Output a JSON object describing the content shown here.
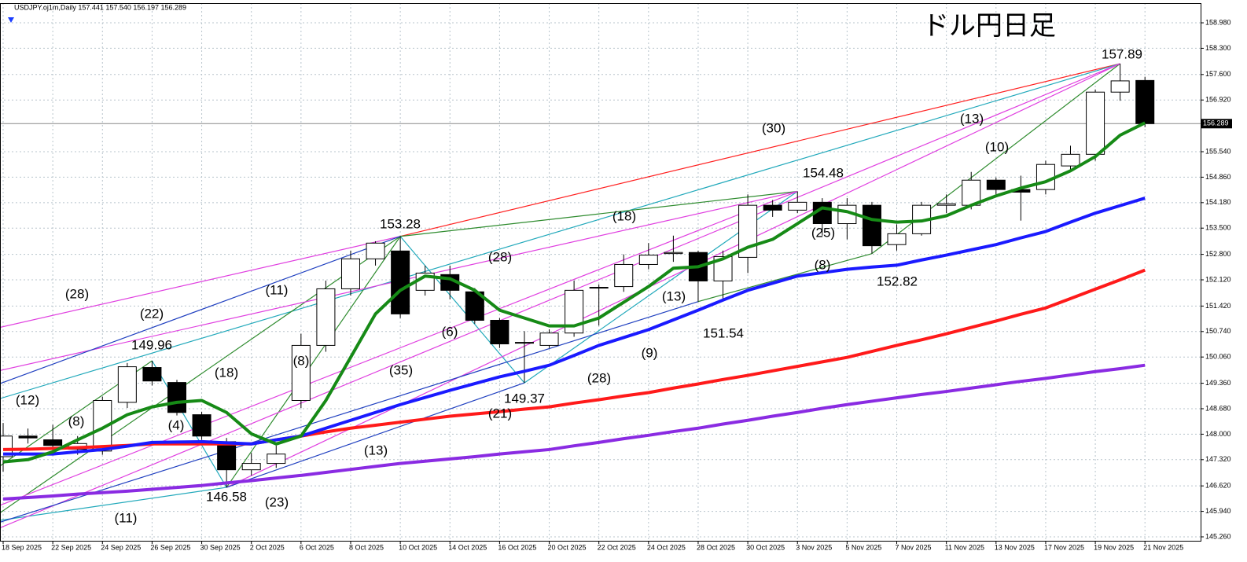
{
  "chart_data": {
    "type": "candlestick",
    "header": "USDJPY.oj1m,Daily  157.441 157.540 156.197 156.289",
    "title": "ドル円日足",
    "categories": [
      "18 Sep 2025",
      null,
      "22 Sep 2025",
      null,
      "24 Sep 2025",
      null,
      "26 Sep 2025",
      null,
      "30 Sep 2025",
      null,
      "2 Oct 2025",
      null,
      "6 Oct 2025",
      null,
      "8 Oct 2025",
      null,
      "10 Oct 2025",
      null,
      "14 Oct 2025",
      null,
      "16 Oct 2025",
      null,
      "20 Oct 2025",
      null,
      "22 Oct 2025",
      null,
      "24 Oct 2025",
      null,
      "28 Oct 2025",
      null,
      "30 Oct 2025",
      null,
      "3 Nov 2025",
      null,
      "5 Nov 2025",
      null,
      "7 Nov 2025",
      null,
      "11 Nov 2025",
      null,
      "13 Nov 2025",
      null,
      "17 Nov 2025",
      null,
      "19 Nov 2025",
      null,
      "21 Nov 2025"
    ],
    "open": [
      147.4,
      147.95,
      147.85,
      147.6,
      147.55,
      148.85,
      149.78,
      149.38,
      148.52,
      147.8,
      147.05,
      147.22,
      148.9,
      150.37,
      151.88,
      152.68,
      152.89,
      151.84,
      152.26,
      151.8,
      151.04,
      150.45,
      150.37,
      150.7,
      151.9,
      151.94,
      152.53,
      152.82,
      152.85,
      152.09,
      152.72,
      154.11,
      153.98,
      154.19,
      153.62,
      154.11,
      153.06,
      153.35,
      154.11,
      154.11,
      154.78,
      154.53,
      154.53,
      155.16,
      155.47,
      157.13,
      157.441
    ],
    "high": [
      148.3,
      148.15,
      148.25,
      147.95,
      149.0,
      149.9,
      149.96,
      149.45,
      148.6,
      147.9,
      147.5,
      147.7,
      150.68,
      152.1,
      152.9,
      153.15,
      153.28,
      152.5,
      152.5,
      151.9,
      151.1,
      150.75,
      150.8,
      152.1,
      152.0,
      152.8,
      153.1,
      153.3,
      152.9,
      152.9,
      154.4,
      154.25,
      154.48,
      154.3,
      154.3,
      154.2,
      153.6,
      154.2,
      154.4,
      155.0,
      154.85,
      154.9,
      155.3,
      155.7,
      157.2,
      157.89,
      157.54
    ],
    "low": [
      147.0,
      147.75,
      147.55,
      147.45,
      147.45,
      148.7,
      149.3,
      148.5,
      147.85,
      146.58,
      146.9,
      147.1,
      148.7,
      150.2,
      151.7,
      152.5,
      151.1,
      151.7,
      151.6,
      150.95,
      150.3,
      149.37,
      150.3,
      150.6,
      150.9,
      151.8,
      152.4,
      152.6,
      151.54,
      151.6,
      152.3,
      153.8,
      153.9,
      153.3,
      153.2,
      152.82,
      152.9,
      153.3,
      153.9,
      154.0,
      154.4,
      153.7,
      154.4,
      155.0,
      155.3,
      156.9,
      156.197
    ],
    "close": [
      147.95,
      147.9,
      147.7,
      147.75,
      148.9,
      149.8,
      149.42,
      148.58,
      147.95,
      147.05,
      147.22,
      147.47,
      150.37,
      151.88,
      152.68,
      153.1,
      151.21,
      152.3,
      151.84,
      151.04,
      150.41,
      150.43,
      150.7,
      151.84,
      151.92,
      152.53,
      152.78,
      152.85,
      152.09,
      152.74,
      154.11,
      153.98,
      154.19,
      153.62,
      154.11,
      153.03,
      153.35,
      154.11,
      154.15,
      154.78,
      154.53,
      154.46,
      155.2,
      155.47,
      157.13,
      157.43,
      156.289
    ],
    "lines": [
      {
        "color": "#8a2be2",
        "values": [
          146.27,
          146.31,
          146.35,
          146.4,
          146.44,
          146.48,
          146.53,
          146.58,
          146.63,
          146.7,
          146.76,
          146.83,
          146.9,
          146.98,
          147.06,
          147.14,
          147.22,
          147.28,
          147.34,
          147.4,
          147.47,
          147.53,
          147.59,
          147.69,
          147.78,
          147.88,
          147.97,
          148.07,
          148.16,
          148.27,
          148.37,
          148.48,
          148.58,
          148.69,
          148.79,
          148.88,
          148.97,
          149.06,
          149.14,
          149.23,
          149.32,
          149.41,
          149.49,
          149.58,
          149.67,
          149.75,
          149.84
        ]
      },
      {
        "color": "#ff1a1a",
        "values": [
          147.59,
          147.6,
          147.62,
          147.64,
          147.67,
          147.7,
          147.74,
          147.74,
          147.74,
          147.74,
          147.74,
          147.85,
          147.95,
          148.06,
          148.16,
          148.24,
          148.32,
          148.4,
          148.48,
          148.54,
          148.6,
          148.67,
          148.73,
          148.83,
          148.92,
          149.02,
          149.11,
          149.23,
          149.34,
          149.46,
          149.57,
          149.69,
          149.81,
          149.93,
          150.05,
          150.21,
          150.37,
          150.52,
          150.68,
          150.85,
          151.02,
          151.2,
          151.37,
          151.62,
          151.87,
          152.12,
          152.38
        ]
      },
      {
        "color": "#1a1aff",
        "values": [
          147.47,
          147.47,
          147.47,
          147.53,
          147.59,
          147.68,
          147.78,
          147.79,
          147.8,
          147.77,
          147.74,
          147.85,
          147.95,
          148.16,
          148.37,
          148.58,
          148.79,
          148.98,
          149.17,
          149.35,
          149.53,
          149.68,
          149.84,
          150.1,
          150.37,
          150.58,
          150.79,
          151.05,
          151.31,
          151.58,
          151.84,
          152.03,
          152.22,
          152.31,
          152.4,
          152.46,
          152.51,
          152.65,
          152.78,
          152.92,
          153.06,
          153.24,
          153.41,
          153.66,
          153.9,
          154.1,
          154.3
        ]
      },
      {
        "color": "#168a16",
        "values": [
          147.26,
          147.32,
          147.53,
          147.85,
          148.16,
          148.52,
          148.73,
          148.85,
          148.9,
          148.58,
          148.01,
          147.74,
          147.95,
          148.9,
          150.05,
          151.21,
          151.84,
          152.22,
          152.15,
          151.84,
          151.31,
          151.1,
          150.89,
          150.89,
          151.1,
          151.52,
          151.94,
          152.43,
          152.47,
          152.68,
          152.99,
          153.2,
          153.62,
          154.04,
          153.94,
          153.73,
          153.66,
          153.69,
          153.83,
          154.11,
          154.36,
          154.57,
          154.74,
          155.03,
          155.41,
          155.98,
          156.31
        ]
      }
    ],
    "trendlines": [
      {
        "color": "#ff2020",
        "points": [
          [
            16,
            153.28
          ],
          [
            45,
            157.89
          ]
        ]
      },
      {
        "color": "#22a9bb",
        "points": [
          [
            -0.13,
            148.95
          ],
          [
            45,
            157.89
          ]
        ]
      },
      {
        "color": "#22a9bb",
        "points": [
          [
            -0.13,
            145.7
          ],
          [
            9,
            146.58
          ]
        ]
      },
      {
        "color": "#22a9bb",
        "points": [
          [
            6,
            149.96
          ],
          [
            9,
            146.58
          ]
        ]
      },
      {
        "color": "#22a9bb",
        "points": [
          [
            16,
            153.28
          ],
          [
            21,
            149.37
          ]
        ]
      },
      {
        "color": "#22a9bb",
        "points": [
          [
            21,
            149.37
          ],
          [
            32,
            154.48
          ]
        ]
      },
      {
        "color": "#2e8b2e",
        "points": [
          [
            -0.13,
            145.9
          ],
          [
            16,
            153.28
          ]
        ]
      },
      {
        "color": "#2e8b2e",
        "points": [
          [
            9,
            146.58
          ],
          [
            16,
            153.28
          ]
        ]
      },
      {
        "color": "#2e8b2e",
        "points": [
          [
            16,
            153.28
          ],
          [
            32,
            154.48
          ]
        ]
      },
      {
        "color": "#2e8b2e",
        "points": [
          [
            -0.13,
            147.15
          ],
          [
            6,
            149.96
          ]
        ]
      },
      {
        "color": "#2e8b2e",
        "points": [
          [
            28,
            151.54
          ],
          [
            35,
            152.82
          ]
        ]
      },
      {
        "color": "#2e8b2e",
        "points": [
          [
            35,
            152.82
          ],
          [
            45,
            157.89
          ]
        ]
      },
      {
        "color": "#e040e0",
        "points": [
          [
            -0.13,
            150.85
          ],
          [
            16,
            153.28
          ]
        ]
      },
      {
        "color": "#e040e0",
        "points": [
          [
            -0.13,
            149.7
          ],
          [
            32,
            154.48
          ]
        ]
      },
      {
        "color": "#e040e0",
        "points": [
          [
            -0.13,
            145.5
          ],
          [
            45,
            157.89
          ]
        ]
      },
      {
        "color": "#e040e0",
        "points": [
          [
            9,
            146.58
          ],
          [
            45,
            157.89
          ]
        ]
      },
      {
        "color": "#e040e0",
        "points": [
          [
            -0.13,
            146.1
          ],
          [
            32,
            154.48
          ]
        ]
      },
      {
        "color": "#2040c0",
        "points": [
          [
            -0.13,
            149.35
          ],
          [
            16,
            153.28
          ]
        ]
      },
      {
        "color": "#2040c0",
        "points": [
          [
            -0.13,
            145.65
          ],
          [
            28,
            151.54
          ]
        ]
      },
      {
        "color": "#2040c0",
        "points": [
          [
            9,
            146.58
          ],
          [
            21,
            149.37
          ]
        ]
      }
    ],
    "annotations": [
      "(12)",
      "(8)",
      "(28)",
      "(22)",
      "(4)",
      "(18)",
      "(11)",
      "(8)",
      "(35)",
      "(6)",
      "(28)",
      "(13)",
      "(21)",
      "(23)",
      "(11)",
      "(28)",
      "(9)",
      "(13)",
      "(18)",
      "(30)",
      "(25)",
      "(8)",
      "(13)",
      "(10)"
    ],
    "pivots": [
      149.96,
      146.58,
      153.28,
      149.37,
      151.54,
      154.48,
      152.82,
      157.89
    ],
    "last_price": 156.289,
    "ylim": [
      145.155,
      159.505
    ],
    "yticks": [
      {
        "value": 158.98,
        "label": "158.980"
      },
      {
        "value": 158.3,
        "label": "158.300"
      },
      {
        "value": 157.6,
        "label": "157.600"
      },
      {
        "value": 156.92,
        "label": "156.920"
      },
      {
        "value": 155.54,
        "label": "155.540"
      },
      {
        "value": 154.86,
        "label": "154.860"
      },
      {
        "value": 154.18,
        "label": "154.180"
      },
      {
        "value": 153.5,
        "label": "153.500"
      },
      {
        "value": 152.8,
        "label": "152.800"
      },
      {
        "value": 152.12,
        "label": "152.120"
      },
      {
        "value": 151.42,
        "label": "151.420"
      },
      {
        "value": 150.74,
        "label": "150.740"
      },
      {
        "value": 150.06,
        "label": "150.060"
      },
      {
        "value": 149.36,
        "label": "149.360"
      },
      {
        "value": 148.68,
        "label": "148.680"
      },
      {
        "value": 148.0,
        "label": "148.000"
      },
      {
        "value": 147.32,
        "label": "147.320"
      },
      {
        "value": 146.62,
        "label": "146.620"
      },
      {
        "value": 145.94,
        "label": "145.940"
      },
      {
        "value": 145.26,
        "label": "145.260"
      }
    ],
    "grid": true
  }
}
